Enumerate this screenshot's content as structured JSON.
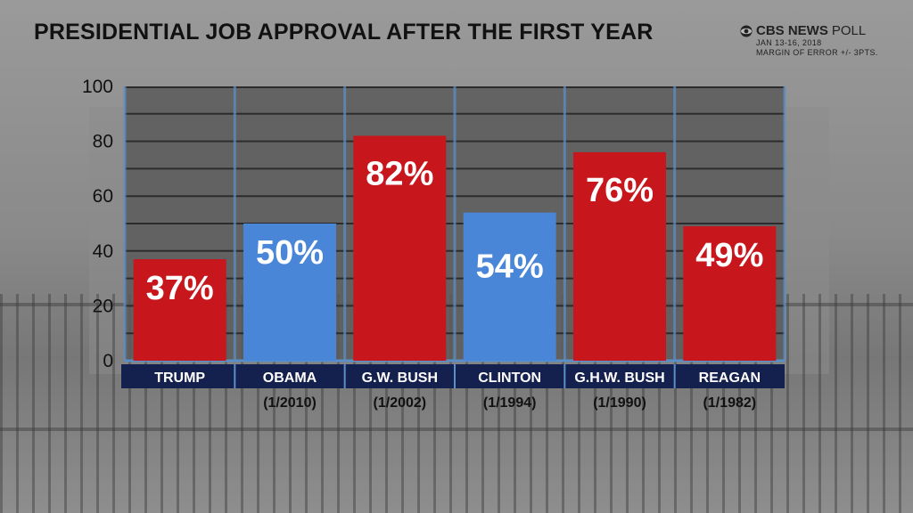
{
  "title": "PRESIDENTIAL JOB APPROVAL AFTER THE FIRST YEAR",
  "brand": {
    "name_bold": "CBS NEWS",
    "name_light": "POLL",
    "dates": "JAN 13-16, 2018",
    "margin": "MARGIN OF ERROR +/- 3PTS."
  },
  "colors": {
    "red": "#c8161d",
    "blue": "#4a86d8",
    "navy": "#14204d",
    "plot_bg": "#5a5a5a",
    "axis": "#5b8fc7"
  },
  "chart_data": {
    "type": "bar",
    "title": "PRESIDENTIAL JOB APPROVAL AFTER THE FIRST YEAR",
    "ylim": [
      0,
      100
    ],
    "yticks": [
      0,
      20,
      40,
      60,
      80,
      100
    ],
    "categories": [
      "TRUMP",
      "OBAMA",
      "G.W. BUSH",
      "CLINTON",
      "G.H.W. BUSH",
      "REAGAN"
    ],
    "dates": [
      "",
      "(1/2010)",
      "(1/2002)",
      "(1/1994)",
      "(1/1990)",
      "(1/1982)"
    ],
    "values": [
      37,
      50,
      82,
      54,
      76,
      49
    ],
    "labels": [
      "37%",
      "50%",
      "82%",
      "54%",
      "76%",
      "49%"
    ],
    "party": [
      "R",
      "D",
      "R",
      "D",
      "R",
      "R"
    ]
  }
}
